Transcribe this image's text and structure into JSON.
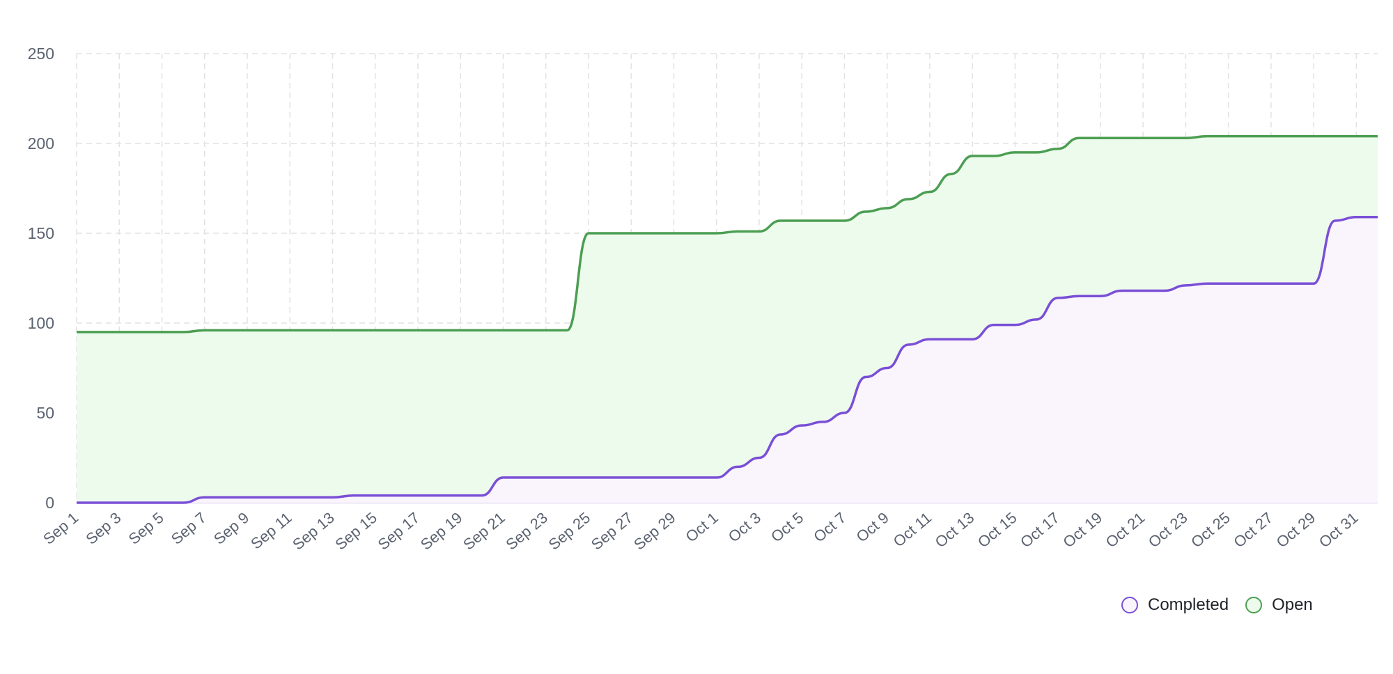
{
  "chart_data": {
    "type": "area",
    "x": [
      "Sep 1",
      "Sep 2",
      "Sep 3",
      "Sep 4",
      "Sep 5",
      "Sep 6",
      "Sep 7",
      "Sep 8",
      "Sep 9",
      "Sep 10",
      "Sep 11",
      "Sep 12",
      "Sep 13",
      "Sep 14",
      "Sep 15",
      "Sep 16",
      "Sep 17",
      "Sep 18",
      "Sep 19",
      "Sep 20",
      "Sep 21",
      "Sep 22",
      "Sep 23",
      "Sep 24",
      "Sep 25",
      "Sep 26",
      "Sep 27",
      "Sep 28",
      "Sep 29",
      "Sep 30",
      "Oct 1",
      "Oct 2",
      "Oct 3",
      "Oct 4",
      "Oct 5",
      "Oct 6",
      "Oct 7",
      "Oct 8",
      "Oct 9",
      "Oct 10",
      "Oct 11",
      "Oct 12",
      "Oct 13",
      "Oct 14",
      "Oct 15",
      "Oct 16",
      "Oct 17",
      "Oct 18",
      "Oct 19",
      "Oct 20",
      "Oct 21",
      "Oct 22",
      "Oct 23",
      "Oct 24",
      "Oct 25",
      "Oct 26",
      "Oct 27",
      "Oct 28",
      "Oct 29",
      "Oct 30",
      "Oct 31",
      "Nov 1"
    ],
    "x_tick_labels": [
      "Sep 1",
      "Sep 3",
      "Sep 5",
      "Sep 7",
      "Sep 9",
      "Sep 11",
      "Sep 13",
      "Sep 15",
      "Sep 17",
      "Sep 19",
      "Sep 21",
      "Sep 23",
      "Sep 25",
      "Sep 27",
      "Sep 29",
      "Oct 1",
      "Oct 3",
      "Oct 5",
      "Oct 7",
      "Oct 9",
      "Oct 11",
      "Oct 13",
      "Oct 15",
      "Oct 17",
      "Oct 19",
      "Oct 21",
      "Oct 23",
      "Oct 25",
      "Oct 27",
      "Oct 29",
      "Oct 31"
    ],
    "series": [
      {
        "name": "Completed",
        "color": "#7a4fd6",
        "fill": "#faf5fd",
        "values": [
          0,
          0,
          0,
          0,
          0,
          0,
          3,
          3,
          3,
          3,
          3,
          3,
          3,
          4,
          4,
          4,
          4,
          4,
          4,
          4,
          14,
          14,
          14,
          14,
          14,
          14,
          14,
          14,
          14,
          14,
          14,
          20,
          25,
          38,
          43,
          45,
          50,
          70,
          75,
          88,
          91,
          91,
          91,
          99,
          99,
          102,
          114,
          115,
          115,
          118,
          118,
          118,
          121,
          122,
          122,
          122,
          122,
          122,
          122,
          157,
          159,
          159
        ]
      },
      {
        "name": "Open",
        "color": "#4c9e52",
        "fill": "#edfbed",
        "values": [
          95,
          95,
          95,
          95,
          95,
          95,
          96,
          96,
          96,
          96,
          96,
          96,
          96,
          96,
          96,
          96,
          96,
          96,
          96,
          96,
          96,
          96,
          96,
          96,
          150,
          150,
          150,
          150,
          150,
          150,
          150,
          151,
          151,
          157,
          157,
          157,
          157,
          162,
          164,
          169,
          173,
          183,
          193,
          193,
          195,
          195,
          197,
          203,
          203,
          203,
          203,
          203,
          203,
          204,
          204,
          204,
          204,
          204,
          204,
          204,
          204,
          204
        ]
      }
    ],
    "ylim": [
      0,
      250
    ],
    "y_ticks": [
      0,
      50,
      100,
      150,
      200,
      250
    ],
    "grid": true,
    "legend_position": "bottom-right"
  },
  "legend": {
    "completed_label": "Completed",
    "open_label": "Open",
    "completed_color": "#7a4fd6",
    "open_color": "#4c9e52"
  }
}
